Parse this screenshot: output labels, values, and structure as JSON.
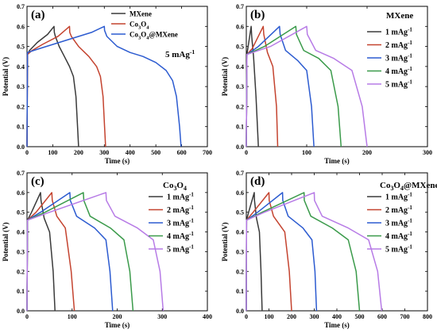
{
  "chart_data": [
    {
      "type": "line",
      "panel_label": "(a)",
      "panel_title": "",
      "xlabel": "Time (s)",
      "ylabel": "Potential (V)",
      "xlim": [
        0,
        700
      ],
      "ylim": [
        0,
        0.7
      ],
      "xticks": [
        0,
        100,
        200,
        300,
        400,
        500,
        600,
        700
      ],
      "yticks": [
        0.0,
        0.1,
        0.2,
        0.3,
        0.4,
        0.5,
        0.6,
        0.7
      ],
      "xtick_labels": [
        "0",
        "100",
        "200",
        "300",
        "400",
        "500",
        "600",
        "700"
      ],
      "ytick_labels": [
        "0.0",
        "0.1",
        "0.2",
        "0.3",
        "0.4",
        "0.5",
        "0.6",
        "0.7"
      ],
      "annotation": "5 mAg-1",
      "legend_position": "top-right",
      "grid": false,
      "series": [
        {
          "name": "MXene",
          "color": "#3a3a3a",
          "x": [
            0,
            2,
            10,
            40,
            80,
            105,
            106,
            110,
            125,
            145,
            165,
            180,
            190,
            196,
            200
          ],
          "y": [
            0,
            0.46,
            0.48,
            0.52,
            0.56,
            0.6,
            0.57,
            0.55,
            0.5,
            0.45,
            0.4,
            0.35,
            0.25,
            0.1,
            0
          ]
        },
        {
          "name": "Co3O4",
          "color": "#c4432f",
          "x": [
            0,
            2,
            20,
            60,
            120,
            165,
            166,
            172,
            200,
            240,
            270,
            285,
            295,
            301,
            305
          ],
          "y": [
            0,
            0.46,
            0.48,
            0.51,
            0.55,
            0.6,
            0.57,
            0.55,
            0.5,
            0.45,
            0.4,
            0.35,
            0.25,
            0.1,
            0
          ]
        },
        {
          "name": "Co3O4@MXene",
          "color": "#2c5bd0",
          "x": [
            0,
            2,
            50,
            150,
            250,
            300,
            301,
            310,
            350,
            400,
            450,
            500,
            540,
            565,
            580,
            592,
            598
          ],
          "y": [
            0,
            0.47,
            0.49,
            0.53,
            0.57,
            0.6,
            0.58,
            0.55,
            0.5,
            0.47,
            0.45,
            0.42,
            0.38,
            0.33,
            0.25,
            0.1,
            0
          ]
        }
      ],
      "legend_labels": [
        {
          "main": "MXene",
          "sub": "",
          "rest": ""
        },
        {
          "main": "Co",
          "sub": "3",
          "rest": "O4"
        },
        {
          "main": "Co",
          "sub": "3",
          "rest": "O4@MXene"
        }
      ]
    },
    {
      "type": "line",
      "panel_label": "(b)",
      "panel_title": "MXene",
      "xlabel": "Time (s)",
      "ylabel": "Potential (V)",
      "xlim": [
        0,
        300
      ],
      "ylim": [
        0,
        0.7
      ],
      "xticks": [
        0,
        100,
        200,
        300
      ],
      "yticks": [
        0.0,
        0.1,
        0.2,
        0.3,
        0.4,
        0.5,
        0.6,
        0.7
      ],
      "xtick_labels": [
        "0",
        "100",
        "200",
        "300"
      ],
      "ytick_labels": [
        "0.0",
        "0.1",
        "0.2",
        "0.3",
        "0.4",
        "0.5",
        "0.6",
        "0.7"
      ],
      "legend_position": "right",
      "grid": false,
      "series": [
        {
          "name": "1 mAg-1",
          "color": "#3a3a3a",
          "x": [
            0,
            1,
            8,
            9,
            12,
            16,
            20
          ],
          "y": [
            0,
            0.46,
            0.6,
            0.55,
            0.45,
            0.25,
            0
          ]
        },
        {
          "name": "2 mAg-1",
          "color": "#c4432f",
          "x": [
            0,
            1,
            10,
            28,
            29,
            35,
            44,
            50,
            52
          ],
          "y": [
            0,
            0.46,
            0.49,
            0.6,
            0.56,
            0.47,
            0.4,
            0.2,
            0
          ]
        },
        {
          "name": "3 mAg-1",
          "color": "#2c5bd0",
          "x": [
            0,
            1,
            20,
            55,
            56,
            65,
            85,
            100,
            108,
            112
          ],
          "y": [
            0,
            0.46,
            0.5,
            0.6,
            0.56,
            0.48,
            0.43,
            0.38,
            0.2,
            0
          ]
        },
        {
          "name": "4 mAg-1",
          "color": "#3a9a4a",
          "x": [
            0,
            1,
            30,
            82,
            83,
            95,
            120,
            140,
            152,
            157
          ],
          "y": [
            0,
            0.46,
            0.5,
            0.6,
            0.56,
            0.48,
            0.44,
            0.38,
            0.2,
            0
          ]
        },
        {
          "name": "5 mAg-1",
          "color": "#b77be6",
          "x": [
            0,
            1,
            40,
            100,
            101,
            115,
            145,
            175,
            192,
            200
          ],
          "y": [
            0,
            0.46,
            0.5,
            0.6,
            0.56,
            0.48,
            0.44,
            0.38,
            0.2,
            0
          ]
        }
      ],
      "legend_labels": [
        {
          "main": "1 mAg",
          "sup": "-1"
        },
        {
          "main": "2 mAg",
          "sup": "-1"
        },
        {
          "main": "3 mAg",
          "sup": "-1"
        },
        {
          "main": "4 mAg",
          "sup": "-1"
        },
        {
          "main": "5 mAg",
          "sup": "-1"
        }
      ]
    },
    {
      "type": "line",
      "panel_label": "(c)",
      "panel_title": "Co3O4",
      "xlabel": "Time (s)",
      "ylabel": "Potential (V)",
      "xlim": [
        0,
        400
      ],
      "ylim": [
        0,
        0.7
      ],
      "xticks": [
        0,
        100,
        200,
        300,
        400
      ],
      "yticks": [
        0.0,
        0.1,
        0.2,
        0.3,
        0.4,
        0.5,
        0.6,
        0.7
      ],
      "xtick_labels": [
        "0",
        "100",
        "200",
        "300",
        "400"
      ],
      "ytick_labels": [
        "0.0",
        "0.1",
        "0.2",
        "0.3",
        "0.4",
        "0.5",
        "0.6",
        "0.7"
      ],
      "legend_position": "right",
      "grid": false,
      "series": [
        {
          "name": "1 mAg-1",
          "color": "#3a3a3a",
          "x": [
            0,
            1,
            10,
            30,
            31,
            38,
            50,
            58,
            62
          ],
          "y": [
            0,
            0.46,
            0.5,
            0.6,
            0.56,
            0.47,
            0.4,
            0.2,
            0
          ]
        },
        {
          "name": "2 mAg-1",
          "color": "#c4432f",
          "x": [
            0,
            1,
            20,
            55,
            56,
            66,
            85,
            98,
            105
          ],
          "y": [
            0,
            0.46,
            0.5,
            0.6,
            0.56,
            0.48,
            0.42,
            0.2,
            0
          ]
        },
        {
          "name": "3 mAg-1",
          "color": "#2c5bd0",
          "x": [
            0,
            1,
            30,
            95,
            96,
            110,
            150,
            175,
            184,
            190
          ],
          "y": [
            0,
            0.46,
            0.5,
            0.6,
            0.56,
            0.48,
            0.42,
            0.36,
            0.2,
            0
          ]
        },
        {
          "name": "4 mAg-1",
          "color": "#3a9a4a",
          "x": [
            0,
            1,
            40,
            125,
            126,
            140,
            185,
            215,
            228,
            235
          ],
          "y": [
            0,
            0.46,
            0.5,
            0.6,
            0.56,
            0.48,
            0.42,
            0.36,
            0.2,
            0
          ]
        },
        {
          "name": "5 mAg-1",
          "color": "#b77be6",
          "x": [
            0,
            1,
            50,
            175,
            176,
            195,
            245,
            280,
            295,
            302
          ],
          "y": [
            0,
            0.46,
            0.5,
            0.6,
            0.56,
            0.48,
            0.42,
            0.36,
            0.2,
            0
          ]
        }
      ],
      "legend_labels": [
        {
          "main": "1 mAg",
          "sup": "-1"
        },
        {
          "main": "2 mAg",
          "sup": "-1"
        },
        {
          "main": "3 mAg",
          "sup": "-1"
        },
        {
          "main": "4 mAg",
          "sup": "-1"
        },
        {
          "main": "5 mAg",
          "sup": "-1"
        }
      ]
    },
    {
      "type": "line",
      "panel_label": "(d)",
      "panel_title": "Co3O4@MXene",
      "xlabel": "Time (s)",
      "ylabel": "Potential (V)",
      "xlim": [
        0,
        800
      ],
      "ylim": [
        0,
        0.7
      ],
      "xticks": [
        0,
        100,
        200,
        300,
        400,
        500,
        600,
        700,
        800
      ],
      "yticks": [
        0.0,
        0.1,
        0.2,
        0.3,
        0.4,
        0.5,
        0.6,
        0.7
      ],
      "xtick_labels": [
        "0",
        "100",
        "200",
        "300",
        "400",
        "500",
        "600",
        "700",
        "800"
      ],
      "ytick_labels": [
        "0.0",
        "0.1",
        "0.2",
        "0.3",
        "0.4",
        "0.5",
        "0.6",
        "0.7"
      ],
      "legend_position": "right",
      "grid": false,
      "series": [
        {
          "name": "1 mAg-1",
          "color": "#3a3a3a",
          "x": [
            0,
            1,
            10,
            35,
            36,
            45,
            58,
            65,
            70
          ],
          "y": [
            0,
            0.46,
            0.5,
            0.6,
            0.56,
            0.47,
            0.4,
            0.2,
            0
          ]
        },
        {
          "name": "2 mAg-1",
          "color": "#c4432f",
          "x": [
            0,
            1,
            30,
            100,
            101,
            120,
            170,
            190,
            200
          ],
          "y": [
            0,
            0.46,
            0.5,
            0.6,
            0.56,
            0.48,
            0.4,
            0.2,
            0
          ]
        },
        {
          "name": "3 mAg-1",
          "color": "#2c5bd0",
          "x": [
            0,
            1,
            50,
            160,
            161,
            185,
            250,
            290,
            303,
            310
          ],
          "y": [
            0,
            0.46,
            0.5,
            0.6,
            0.56,
            0.48,
            0.42,
            0.36,
            0.2,
            0
          ]
        },
        {
          "name": "4 mAg-1",
          "color": "#3a9a4a",
          "x": [
            0,
            1,
            70,
            255,
            256,
            285,
            380,
            450,
            485,
            500
          ],
          "y": [
            0,
            0.46,
            0.5,
            0.6,
            0.56,
            0.48,
            0.42,
            0.36,
            0.2,
            0
          ]
        },
        {
          "name": "5 mAg-1",
          "color": "#b77be6",
          "x": [
            0,
            1,
            80,
            300,
            301,
            335,
            450,
            540,
            580,
            598
          ],
          "y": [
            0,
            0.46,
            0.5,
            0.6,
            0.56,
            0.48,
            0.42,
            0.36,
            0.2,
            0
          ]
        }
      ],
      "legend_labels": [
        {
          "main": "1 mAg",
          "sup": "-1"
        },
        {
          "main": "2 mAg",
          "sup": "-1"
        },
        {
          "main": "3 mAg",
          "sup": "-1"
        },
        {
          "main": "4 mAg",
          "sup": "-1"
        },
        {
          "main": "5 mAg",
          "sup": "-1"
        }
      ]
    }
  ]
}
